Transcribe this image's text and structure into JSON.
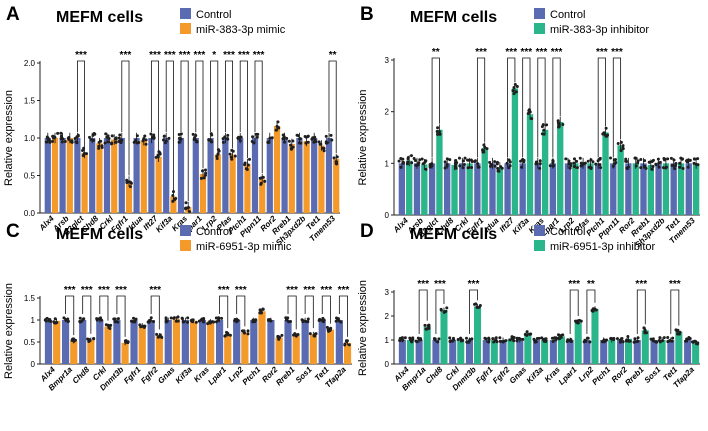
{
  "figure": {
    "colors": {
      "control": "#5b6bb2",
      "mimic": "#f39a2b",
      "inhibitor": "#2bb58a",
      "dot": "#1f1f1f",
      "axis": "#222222"
    }
  },
  "chart_data": [
    {
      "id": "A",
      "type": "bar",
      "panel_label": "A",
      "title": "MEFM cells",
      "ylabel": "Relative expression",
      "ylim": [
        0,
        2.0
      ],
      "yticks": [
        "0.0",
        "0.5",
        "1.0",
        "1.5",
        "2.0"
      ],
      "legend": [
        "Control",
        "miR-383-3p mimic"
      ],
      "legend_colors": [
        "#5b6bb2",
        "#f39a2b"
      ],
      "categories": [
        "Alx4",
        "Arsb",
        "B3glct",
        "Chd8",
        "Crkl",
        "Fgfr1",
        "Idua",
        "Ift27",
        "Kif3a",
        "Kras",
        "Lpar1",
        "Lrp2",
        "Pfas",
        "Ptch1",
        "Ptpn11",
        "Ror2",
        "Rreb1",
        "Sh3pxd2b",
        "Tet1",
        "Tmem53"
      ],
      "series": [
        {
          "name": "Control",
          "values": [
            1.0,
            1.0,
            1.0,
            1.0,
            1.0,
            1.0,
            1.0,
            1.0,
            1.0,
            1.0,
            1.0,
            1.0,
            1.0,
            1.0,
            1.0,
            1.0,
            1.0,
            1.0,
            1.0,
            1.0
          ]
        },
        {
          "name": "miR-383-3p mimic",
          "values": [
            1.0,
            1.0,
            0.8,
            0.93,
            0.98,
            0.42,
            0.97,
            0.75,
            0.22,
            0.08,
            0.52,
            0.78,
            0.78,
            0.65,
            0.45,
            1.16,
            0.92,
            0.96,
            0.9,
            0.72
          ]
        }
      ],
      "significance": [
        {
          "index": 2,
          "label": "***"
        },
        {
          "index": 5,
          "label": "***"
        },
        {
          "index": 7,
          "label": "***"
        },
        {
          "index": 8,
          "label": "***"
        },
        {
          "index": 9,
          "label": "***"
        },
        {
          "index": 10,
          "label": "***"
        },
        {
          "index": 11,
          "label": "*"
        },
        {
          "index": 12,
          "label": "***"
        },
        {
          "index": 13,
          "label": "***"
        },
        {
          "index": 14,
          "label": "***"
        },
        {
          "index": 19,
          "label": "**"
        }
      ]
    },
    {
      "id": "B",
      "type": "bar",
      "panel_label": "B",
      "title": "MEFM cells",
      "ylabel": "Relative expression",
      "ylim": [
        0,
        3
      ],
      "yticks": [
        "0",
        "1",
        "2",
        "3"
      ],
      "legend": [
        "Control",
        "miR-383-3p inhibitor"
      ],
      "legend_colors": [
        "#5b6bb2",
        "#2bb58a"
      ],
      "categories": [
        "Alx4",
        "Arsb",
        "B3glct",
        "Chd8",
        "Crkl",
        "Fgfr1",
        "Idua",
        "Ift27",
        "Kif3a",
        "Kras",
        "Lpar1",
        "Lrp2",
        "Pfas",
        "Ptch1",
        "Ptpn11",
        "Ror2",
        "Rreb1",
        "Sh3pxd2b",
        "Tet1",
        "Tmem53"
      ],
      "series": [
        {
          "name": "Control",
          "values": [
            1.0,
            1.0,
            1.0,
            1.0,
            1.0,
            1.0,
            1.0,
            1.0,
            1.0,
            1.0,
            1.0,
            1.0,
            1.0,
            1.0,
            1.0,
            1.0,
            1.0,
            1.0,
            1.0,
            1.0
          ]
        },
        {
          "name": "miR-383-3p inhibitor",
          "values": [
            1.05,
            0.98,
            1.65,
            0.97,
            1.0,
            1.3,
            0.92,
            2.45,
            1.95,
            1.65,
            1.8,
            1.0,
            1.0,
            1.6,
            1.35,
            1.0,
            0.97,
            1.0,
            1.0,
            1.0
          ]
        }
      ],
      "significance": [
        {
          "index": 2,
          "label": "**"
        },
        {
          "index": 5,
          "label": "***"
        },
        {
          "index": 7,
          "label": "***"
        },
        {
          "index": 8,
          "label": "***"
        },
        {
          "index": 9,
          "label": "***"
        },
        {
          "index": 10,
          "label": "***"
        },
        {
          "index": 13,
          "label": "***"
        },
        {
          "index": 14,
          "label": "***"
        }
      ]
    },
    {
      "id": "C",
      "type": "bar",
      "panel_label": "C",
      "title": "MEFM cells",
      "ylabel": "Relative expression",
      "ylim": [
        0,
        1.5
      ],
      "yticks": [
        "0",
        "0.5",
        "1",
        "1.5"
      ],
      "legend": [
        "Control",
        "miR-6951-3p mimic"
      ],
      "legend_colors": [
        "#5b6bb2",
        "#f39a2b"
      ],
      "categories": [
        "Alx4",
        "Bmpr1a",
        "Chd8",
        "Crkl",
        "Dnmt3b",
        "Fgfr1",
        "Fgfr2",
        "Gnas",
        "Kif3a",
        "Kras",
        "Lpar1",
        "Lrp2",
        "Ptch1",
        "Ror2",
        "Rreb1",
        "Sos1",
        "Tet1",
        "Tfap2a"
      ],
      "series": [
        {
          "name": "Control",
          "values": [
            1.0,
            1.0,
            1.0,
            1.0,
            1.0,
            1.0,
            1.0,
            1.0,
            1.0,
            1.0,
            1.0,
            1.0,
            1.0,
            1.0,
            1.0,
            1.0,
            1.0,
            1.0
          ]
        },
        {
          "name": "miR-6951-3p mimic",
          "values": [
            0.98,
            0.52,
            0.55,
            0.85,
            0.48,
            0.88,
            0.65,
            1.02,
            0.98,
            0.97,
            0.68,
            0.72,
            1.2,
            0.6,
            0.65,
            0.68,
            0.78,
            0.48
          ]
        }
      ],
      "significance": [
        {
          "index": 1,
          "label": "***"
        },
        {
          "index": 2,
          "label": "***"
        },
        {
          "index": 3,
          "label": "***"
        },
        {
          "index": 4,
          "label": "***"
        },
        {
          "index": 6,
          "label": "***"
        },
        {
          "index": 10,
          "label": "***"
        },
        {
          "index": 11,
          "label": "***"
        },
        {
          "index": 14,
          "label": "***"
        },
        {
          "index": 15,
          "label": "***"
        },
        {
          "index": 16,
          "label": "***"
        },
        {
          "index": 17,
          "label": "***"
        }
      ]
    },
    {
      "id": "D",
      "type": "bar",
      "panel_label": "D",
      "title": "MEFM cells",
      "ylabel": "Relative expression",
      "ylim": [
        0,
        3
      ],
      "yticks": [
        "0",
        "1",
        "2",
        "3"
      ],
      "legend": [
        "Control",
        "miR-6951-3p inhibitor"
      ],
      "legend_colors": [
        "#5b6bb2",
        "#2bb58a"
      ],
      "categories": [
        "Alx4",
        "Bmpr1a",
        "Chd8",
        "Crkl",
        "Dnmt3b",
        "Fgfr1",
        "Fgfr2",
        "Gnas",
        "Kif3a",
        "Kras",
        "Lpar1",
        "Lrp2",
        "Ptch1",
        "Ror2",
        "Rreb1",
        "Sos1",
        "Tet1",
        "Tfap2a"
      ],
      "series": [
        {
          "name": "Control",
          "values": [
            1.0,
            1.0,
            1.0,
            1.0,
            1.0,
            1.0,
            1.0,
            1.0,
            1.0,
            1.0,
            1.0,
            1.0,
            1.0,
            1.0,
            1.0,
            1.0,
            1.0,
            1.0
          ]
        },
        {
          "name": "miR-6951-3p inhibitor",
          "values": [
            1.0,
            1.55,
            2.25,
            1.0,
            2.4,
            1.0,
            1.05,
            1.3,
            1.0,
            1.15,
            1.75,
            2.3,
            1.0,
            1.05,
            1.4,
            1.0,
            1.35,
            0.9
          ]
        }
      ],
      "significance": [
        {
          "index": 1,
          "label": "***"
        },
        {
          "index": 2,
          "label": "***"
        },
        {
          "index": 4,
          "label": "***"
        },
        {
          "index": 10,
          "label": "***"
        },
        {
          "index": 11,
          "label": "**"
        },
        {
          "index": 14,
          "label": "***"
        },
        {
          "index": 16,
          "label": "***"
        }
      ]
    }
  ]
}
